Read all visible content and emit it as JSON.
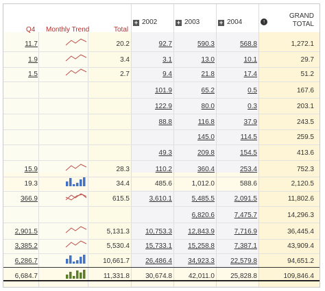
{
  "header": {
    "q4": "Q4",
    "monthly_trend": "Monthly Trend",
    "total": "Total",
    "y2002": "2002",
    "y2003": "2003",
    "y2004": "2004",
    "grand_total_1": "GRAND",
    "grand_total_2": "TOTAL"
  },
  "icons": {
    "expand": "plus-icon",
    "collapse": "arrow-up-icon"
  },
  "colors": {
    "trend_line": "#c0504d",
    "bar_blue": "#4472c4",
    "bar_green": "#5a7d2a",
    "grand_band": "#fdf7d9",
    "total_band": "#fdfbe8",
    "gray_band": "#f3f3f3"
  },
  "rows": [
    {
      "q4": "11.7",
      "total": "20.2",
      "y2002": "92.7",
      "y2003": "590.3",
      "y2004": "568.8",
      "grand": "1,272.1",
      "spark": "line"
    },
    {
      "q4": "1.9",
      "total": "3.4",
      "y2002": "3.1",
      "y2003": "13.0",
      "y2004": "10.1",
      "grand": "29.7",
      "spark": "line"
    },
    {
      "q4": "1.5",
      "total": "2.7",
      "y2002": "9.4",
      "y2003": "21.8",
      "y2004": "17.4",
      "grand": "51.2",
      "spark": "line"
    },
    {
      "q4": "",
      "total": "",
      "y2002": "101.9",
      "y2003": "65.2",
      "y2004": "0.5",
      "grand": "167.6",
      "spark": ""
    },
    {
      "q4": "",
      "total": "",
      "y2002": "122.9",
      "y2003": "80.0",
      "y2004": "0.3",
      "grand": "203.1",
      "spark": ""
    },
    {
      "q4": "",
      "total": "",
      "y2002": "88.8",
      "y2003": "116.8",
      "y2004": "37.9",
      "grand": "243.5",
      "spark": ""
    },
    {
      "q4": "",
      "total": "",
      "y2002": "",
      "y2003": "145.0",
      "y2004": "114.5",
      "grand": "259.5",
      "spark": ""
    },
    {
      "q4": "",
      "total": "",
      "y2002": "49.3",
      "y2003": "209.8",
      "y2004": "154.5",
      "grand": "413.6",
      "spark": ""
    },
    {
      "q4": "15.9",
      "total": "28.3",
      "y2002": "110.2",
      "y2003": "360.4",
      "y2004": "253.4",
      "grand": "752.3",
      "spark": "line"
    },
    {
      "q4": "19.3",
      "total": "34.4",
      "y2002": "485.6",
      "y2003": "1,012.0",
      "y2004": "588.6",
      "grand": "2,120.5",
      "spark": "bar"
    },
    {
      "q4": "366.9",
      "total": "615.5",
      "y2002": "3,610.1",
      "y2003": "5,485.5",
      "y2004": "2,091.5",
      "grand": "11,802.6",
      "spark": "line2"
    },
    {
      "q4": "",
      "total": "",
      "y2002": "",
      "y2003": "6,820.6",
      "y2004": "7,475.7",
      "grand": "14,296.3",
      "spark": ""
    },
    {
      "q4": "2,901.5",
      "total": "5,131.3",
      "y2002": "10,753.3",
      "y2003": "12,843.9",
      "y2004": "7,716.9",
      "grand": "36,445.4",
      "spark": "line"
    },
    {
      "q4": "3,385.2",
      "total": "5,530.4",
      "y2002": "15,733.1",
      "y2003": "15,258.8",
      "y2004": "7,387.1",
      "grand": "43,909.4",
      "spark": "line"
    },
    {
      "q4": "6,286.7",
      "total": "10,661.7",
      "y2002": "26,486.4",
      "y2003": "34,923.3",
      "y2004": "22,579.8",
      "grand": "94,651.2",
      "spark": "bar"
    }
  ],
  "grand_row": {
    "q4": "6,684.7",
    "total": "11,331.8",
    "y2002": "30,674.8",
    "y2003": "42,011.0",
    "y2004": "25,828.8",
    "grand": "109,846.4",
    "spark": "bargreen"
  }
}
